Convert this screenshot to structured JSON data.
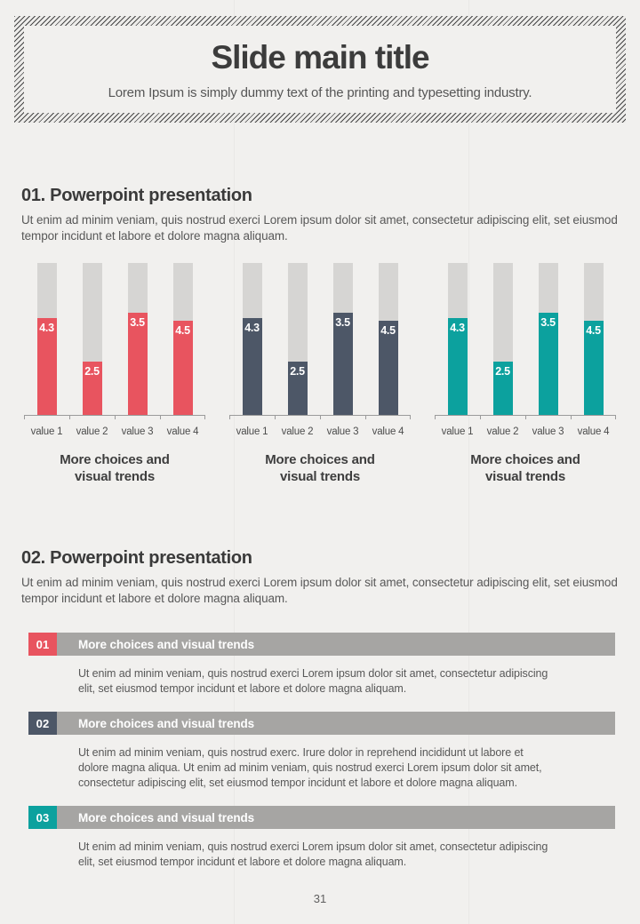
{
  "header": {
    "title": "Slide main title",
    "subtitle": "Lorem Ipsum is simply dummy text of the printing and typesetting industry."
  },
  "sections": [
    {
      "heading": "01. Powerpoint presentation",
      "body": "Ut enim ad minim veniam, quis nostrud exerci  Lorem ipsum dolor sit amet, consectetur adipiscing elit, set eiusmod tempor incidunt et labore et dolore magna aliquam."
    },
    {
      "heading": "02. Powerpoint presentation",
      "body": "Ut enim ad minim veniam, quis nostrud exerci  Lorem ipsum dolor sit amet, consectetur adipiscing elit, set eiusmod tempor incidunt et labore et dolore magna aliquam."
    }
  ],
  "chart_data": {
    "type": "bar",
    "categories": [
      "value 1",
      "value 2",
      "value 3",
      "value 4"
    ],
    "values": [
      4.3,
      2.5,
      3.5,
      4.5
    ],
    "value_labels": [
      "4.3",
      "2.5",
      "3.5",
      "4.5"
    ],
    "displayed_fill_fractions": [
      0.64,
      0.35,
      0.67,
      0.62
    ],
    "background_bar_color": "#d6d5d3",
    "axis_color": "#9b9b9b",
    "grid": false,
    "legend": false,
    "charts": [
      {
        "name": "red",
        "bar_color": "#e8545f",
        "caption_line1": "More choices and",
        "caption_line2": "visual trends"
      },
      {
        "name": "slate",
        "bar_color": "#4d5767",
        "caption_line1": "More choices and",
        "caption_line2": "visual trends"
      },
      {
        "name": "teal",
        "bar_color": "#0ca19e",
        "caption_line1": "More choices and",
        "caption_line2": "visual trends"
      }
    ]
  },
  "list_items": [
    {
      "number": "01",
      "badge_color": "#e8545f",
      "title": "More choices and visual trends",
      "body": "Ut enim ad minim veniam, quis nostrud exerci  Lorem ipsum dolor sit amet, consectetur adipiscing elit, set eiusmod tempor incidunt et labore et dolore magna aliquam."
    },
    {
      "number": "02",
      "badge_color": "#4d5767",
      "title": "More choices and visual trends",
      "body": "Ut enim ad minim veniam, quis nostrud exerc. Irure dolor in reprehend incididunt ut labore et dolore magna aliqua. Ut enim ad minim veniam, quis nostrud exerci  Lorem ipsum dolor sit amet, consectetur adipiscing elit, set eiusmod tempor incidunt et labore et dolore magna aliquam."
    },
    {
      "number": "03",
      "badge_color": "#0ca19e",
      "title": "More choices and visual trends",
      "body": "Ut enim ad minim veniam, quis nostrud exerci  Lorem ipsum dolor sit amet, consectetur adipiscing elit, set eiusmod tempor incidunt et labore et dolore magna aliquam."
    }
  ],
  "footer": {
    "page_number": "31"
  },
  "colors": {
    "page_background": "#f1f0ee",
    "hatch_dark": "#474747",
    "heading_text": "#3a3a3a",
    "body_text": "#585858",
    "list_bar_background": "#a6a5a3"
  }
}
